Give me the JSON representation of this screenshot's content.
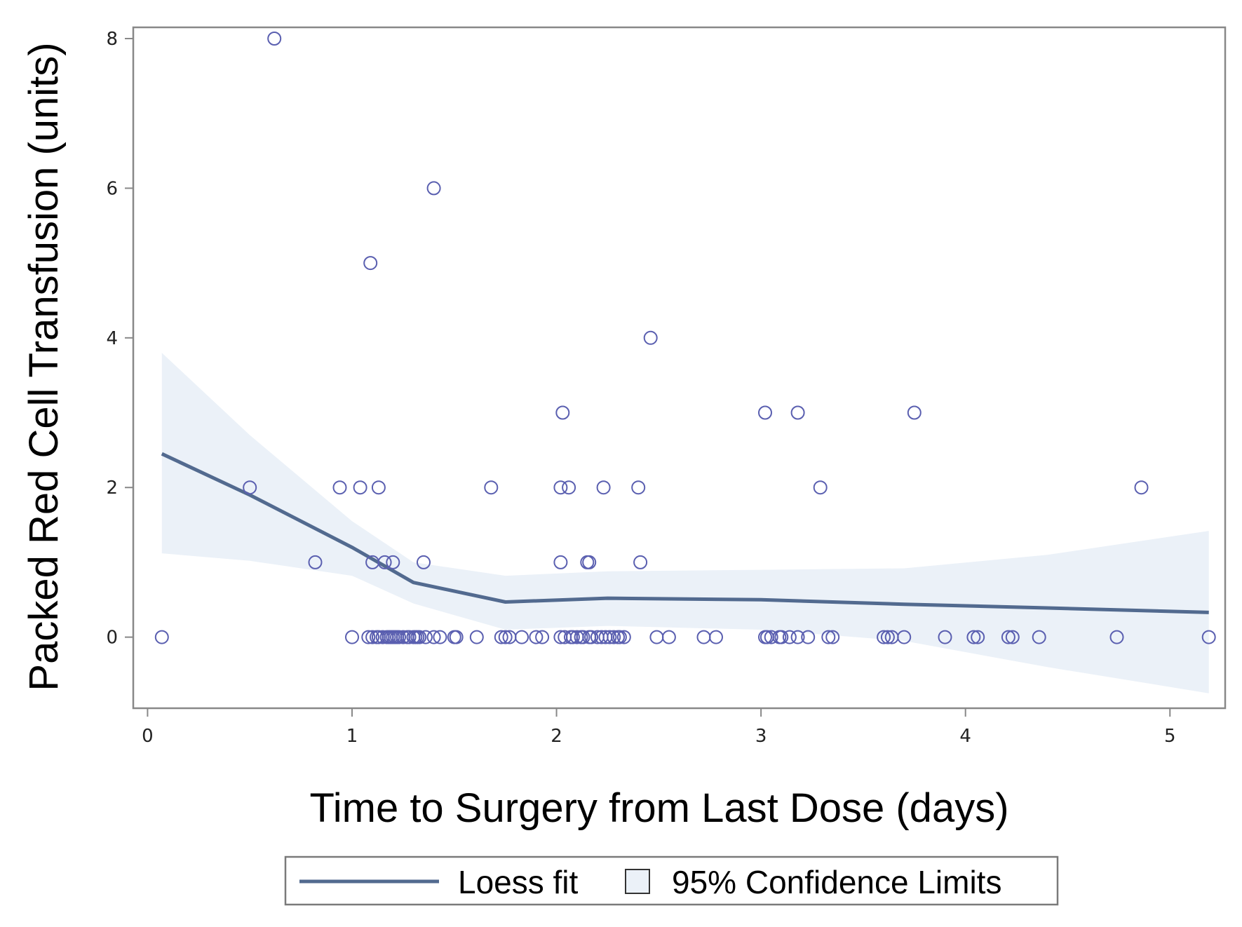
{
  "chart_data": {
    "type": "scatter",
    "xlabel": "Time to Surgery from Last Dose (days)",
    "ylabel": "Packed Red Cell Transfusion (units)",
    "xlim": [
      -0.07,
      5.27
    ],
    "ylim": [
      -0.95,
      8.15
    ],
    "xticks": [
      0,
      1,
      2,
      3,
      4,
      5
    ],
    "yticks": [
      0,
      2,
      4,
      6,
      8
    ],
    "grid": false,
    "colors": {
      "marker": "#5a5fb0",
      "line": "#526a8f",
      "band": "#ebf1f8",
      "axis": "#888888"
    },
    "points": {
      "x": [
        0.07,
        1.0,
        1.08,
        1.1,
        1.12,
        1.13,
        1.15,
        1.17,
        1.18,
        1.19,
        1.2,
        1.21,
        1.22,
        1.23,
        1.25,
        1.27,
        1.28,
        1.3,
        1.31,
        1.32,
        1.33,
        1.36,
        1.4,
        1.43,
        1.5,
        1.51,
        1.61,
        1.73,
        1.75,
        1.77,
        1.83,
        1.9,
        1.93,
        2.02,
        2.04,
        2.07,
        2.08,
        2.1,
        2.12,
        2.13,
        2.16,
        2.17,
        2.2,
        2.22,
        2.24,
        2.26,
        2.28,
        2.3,
        2.31,
        2.33,
        2.49,
        2.55,
        2.72,
        2.78,
        3.02,
        3.03,
        3.05,
        3.09,
        3.1,
        3.14,
        3.18,
        3.23,
        3.33,
        3.35,
        3.6,
        3.62,
        3.64,
        3.7,
        3.9,
        4.04,
        4.06,
        4.21,
        4.23,
        4.36,
        4.74,
        5.19,
        0.82,
        1.1,
        1.16,
        1.2,
        1.35,
        2.02,
        2.15,
        2.16,
        2.41,
        0.5,
        0.94,
        1.04,
        1.13,
        1.68,
        2.02,
        2.06,
        2.23,
        2.4,
        3.29,
        4.86,
        2.03,
        3.02,
        3.18,
        3.75,
        2.46,
        1.09,
        1.4,
        0.62
      ],
      "y": [
        0,
        0,
        0,
        0,
        0,
        0,
        0,
        0,
        0,
        0,
        0,
        0,
        0,
        0,
        0,
        0,
        0,
        0,
        0,
        0,
        0,
        0,
        0,
        0,
        0,
        0,
        0,
        0,
        0,
        0,
        0,
        0,
        0,
        0,
        0,
        0,
        0,
        0,
        0,
        0,
        0,
        0,
        0,
        0,
        0,
        0,
        0,
        0,
        0,
        0,
        0,
        0,
        0,
        0,
        0,
        0,
        0,
        0,
        0,
        0,
        0,
        0,
        0,
        0,
        0,
        0,
        0,
        0,
        0,
        0,
        0,
        0,
        0,
        0,
        0,
        0,
        1,
        1,
        1,
        1,
        1,
        1,
        1,
        1,
        1,
        2,
        2,
        2,
        2,
        2,
        2,
        2,
        2,
        2,
        2,
        2,
        3,
        3,
        3,
        3,
        4,
        5,
        6,
        8
      ]
    },
    "loess": {
      "name": "Loess fit",
      "x": [
        0.07,
        0.5,
        1.0,
        1.3,
        1.75,
        2.25,
        3.0,
        3.7,
        4.4,
        5.19
      ],
      "y": [
        2.45,
        1.9,
        1.2,
        0.73,
        0.47,
        0.52,
        0.5,
        0.44,
        0.39,
        0.33
      ]
    },
    "confidence": {
      "name": "95% Confidence Limits",
      "x": [
        0.07,
        0.5,
        1.0,
        1.3,
        1.75,
        2.25,
        3.0,
        3.7,
        4.4,
        5.19
      ],
      "upper": [
        3.8,
        2.7,
        1.55,
        1.0,
        0.82,
        0.88,
        0.9,
        0.92,
        1.1,
        1.42
      ],
      "lower": [
        1.12,
        1.02,
        0.82,
        0.45,
        0.1,
        0.15,
        0.1,
        -0.05,
        -0.4,
        -0.75
      ]
    },
    "legend": {
      "position": "bottom-center",
      "entries": [
        "Loess fit",
        "95% Confidence Limits"
      ]
    }
  }
}
